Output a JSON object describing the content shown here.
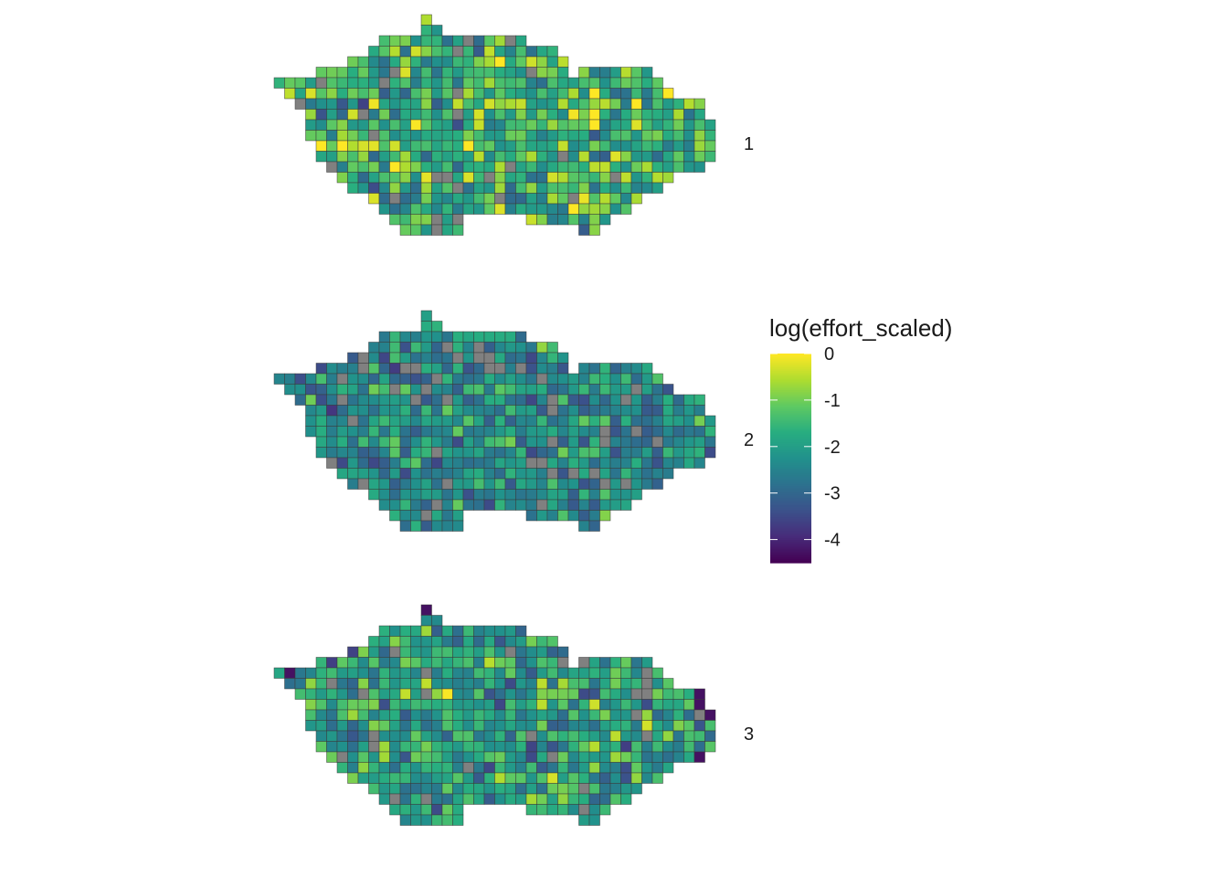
{
  "chart_data": {
    "type": "heatmap",
    "title": "",
    "xlabel": "",
    "ylabel": "",
    "grid": false,
    "legend_placement": "right",
    "na_color": "#808080",
    "cell_border_color": "#3a3a3a",
    "facets": [
      {
        "label": "1",
        "mean": -1.6,
        "spread": 0.75
      },
      {
        "label": "2",
        "mean": -2.35,
        "spread": 0.6
      },
      {
        "label": "3",
        "mean": -1.95,
        "spread": 0.7
      }
    ],
    "legend": {
      "title": "log(effort_scaled)",
      "ticks": [
        {
          "value": 0,
          "label": "0"
        },
        {
          "value": -1,
          "label": "-1"
        },
        {
          "value": -2,
          "label": "-2"
        },
        {
          "value": -3,
          "label": "-3"
        },
        {
          "value": -4,
          "label": "-4"
        }
      ],
      "range": [
        -4.5,
        0
      ],
      "colors": [
        "#440154",
        "#472d7b",
        "#3b528b",
        "#2c728e",
        "#21918c",
        "#28ae80",
        "#5ec962",
        "#addc30",
        "#fde725"
      ]
    }
  }
}
